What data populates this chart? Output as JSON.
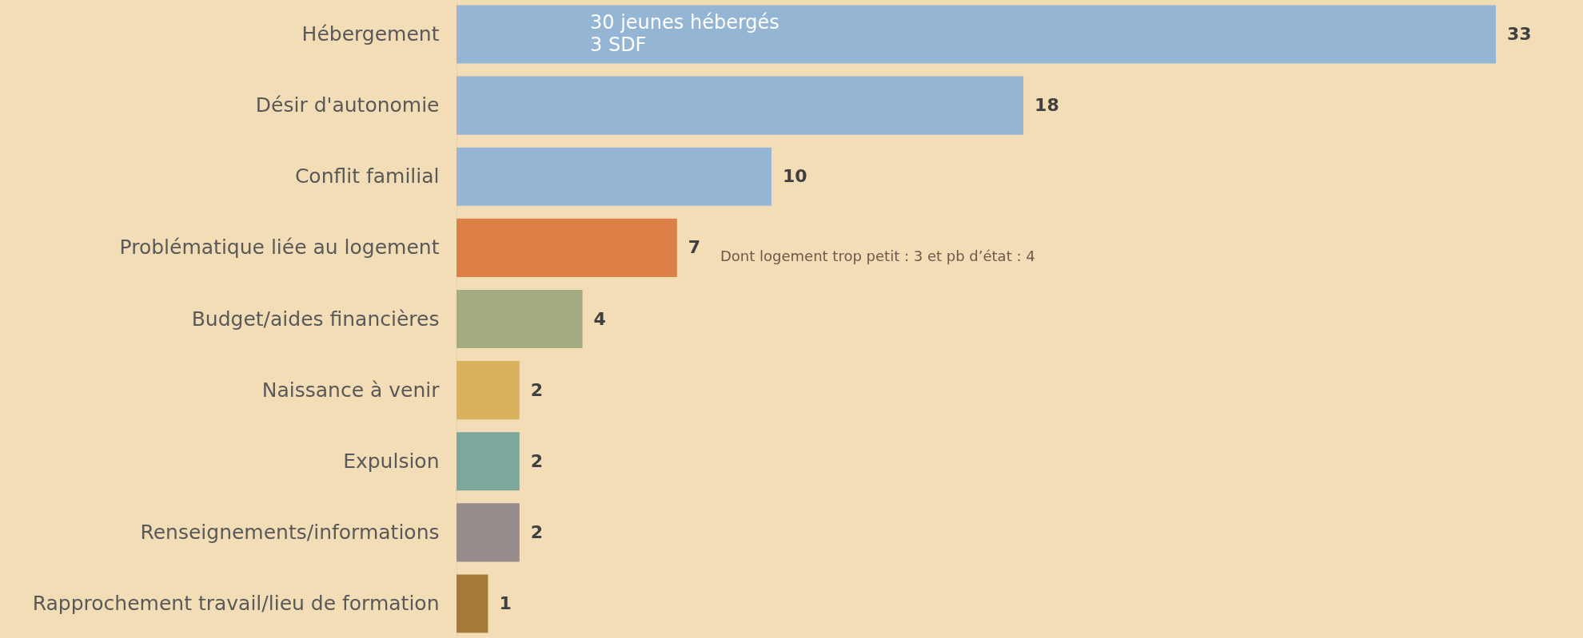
{
  "chart_data": {
    "type": "bar",
    "orientation": "horizontal",
    "data_labels": true,
    "categories": [
      "Hébergement",
      "Désir d'autonomie",
      "Conflit familial",
      "Problématique liée au logement",
      "Budget/aides financières",
      "Naissance à venir",
      "Expulsion",
      "Renseignements/informations",
      "Rapprochement travail/lieu de formation"
    ],
    "values": [
      33,
      18,
      10,
      7,
      4,
      2,
      2,
      2,
      1
    ],
    "colors": [
      "#94b6d4",
      "#94b6d4",
      "#94b6d4",
      "#dd8047",
      "#a5ab81",
      "#d8b25c",
      "#7ba79d",
      "#968c8c",
      "#a37a36"
    ],
    "annotations": [
      "30 jeunes hébergés",
      "3 SDF",
      "Dont logement trop petit : 3 et pb d’état : 4"
    ]
  }
}
